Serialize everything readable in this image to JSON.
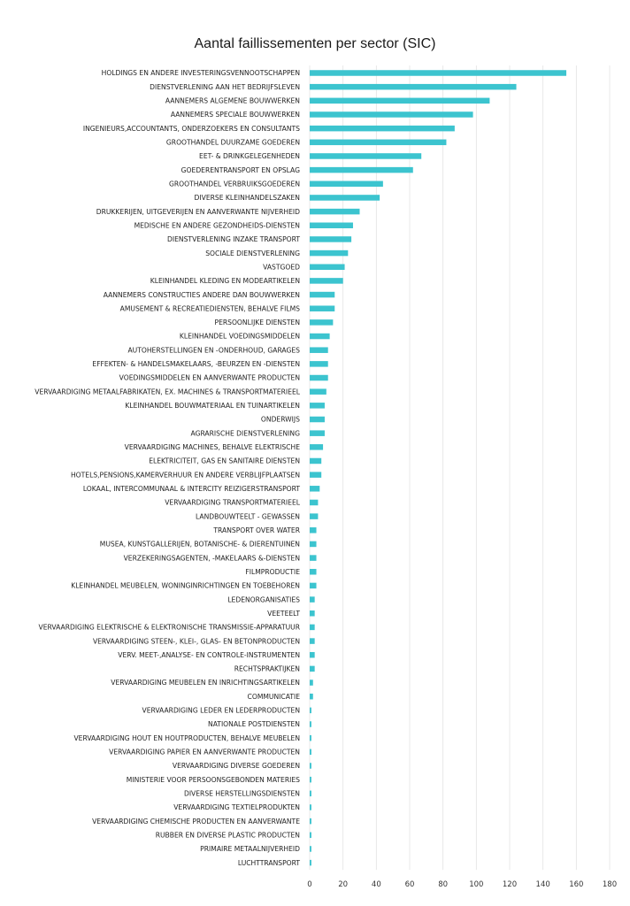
{
  "chart_data": {
    "type": "bar",
    "orientation": "horizontal",
    "title": "Aantal faillissementen per sector (SIC)",
    "xlabel": "",
    "ylabel": "",
    "xlim": [
      0,
      180
    ],
    "xticks": [
      0,
      20,
      40,
      60,
      80,
      100,
      120,
      140,
      160,
      180
    ],
    "grid": "vertical",
    "bar_color": "#3cc4cf",
    "categories": [
      "HOLDINGS EN ANDERE INVESTERINGSVENNOOTSCHAPPEN",
      "DIENSTVERLENING AAN HET BEDRIJFSLEVEN",
      "AANNEMERS ALGEMENE BOUWWERKEN",
      "AANNEMERS SPECIALE BOUWWERKEN",
      "INGENIEURS,ACCOUNTANTS, ONDERZOEKERS EN CONSULTANTS",
      "GROOTHANDEL DUURZAME GOEDEREN",
      "EET- & DRINKGELEGENHEDEN",
      "GOEDERENTRANSPORT EN OPSLAG",
      "GROOTHANDEL VERBRUIKSGOEDEREN",
      "DIVERSE KLEINHANDELSZAKEN",
      "DRUKKERIJEN, UITGEVERIJEN EN AANVERWANTE NIJVERHEID",
      "MEDISCHE EN ANDERE GEZONDHEIDS-DIENSTEN",
      "DIENSTVERLENING INZAKE TRANSPORT",
      "SOCIALE DIENSTVERLENING",
      "VASTGOED",
      "KLEINHANDEL KLEDING EN MODEARTIKELEN",
      "AANNEMERS CONSTRUCTIES ANDERE DAN BOUWWERKEN",
      "AMUSEMENT & RECREATIEDIENSTEN, BEHALVE FILMS",
      "PERSOONLIJKE DIENSTEN",
      "KLEINHANDEL VOEDINGSMIDDELEN",
      "AUTOHERSTELLINGEN EN -ONDERHOUD, GARAGES",
      "EFFEKTEN- & HANDELSMAKELAARS, -BEURZEN EN -DIENSTEN",
      "VOEDINGSMIDDELEN EN AANVERWANTE PRODUCTEN",
      "VERVAARDIGING METAALFABRIKATEN, EX. MACHINES & TRANSPORTMATERIEEL",
      "KLEINHANDEL BOUWMATERIAAL EN TUINARTIKELEN",
      "ONDERWIJS",
      "AGRARISCHE DIENSTVERLENING",
      "VERVAARDIGING MACHINES, BEHALVE ELEKTRISCHE",
      "ELEKTRICITEIT, GAS EN SANITAIRE DIENSTEN",
      "HOTELS,PENSIONS,KAMERVERHUUR EN ANDERE VERBLIJFPLAATSEN",
      "LOKAAL, INTERCOMMUNAAL & INTERCITY REIZIGERSTRANSPORT",
      "VERVAARDIGING TRANSPORTMATERIEEL",
      "LANDBOUWTEELT - GEWASSEN",
      "TRANSPORT OVER WATER",
      "MUSEA, KUNSTGALLERIJEN, BOTANISCHE- & DIERENTUINEN",
      "VERZEKERINGSAGENTEN, -MAKELAARS &-DIENSTEN",
      "FILMPRODUCTIE",
      "KLEINHANDEL MEUBELEN, WONINGINRICHTINGEN EN TOEBEHOREN",
      "LEDENORGANISATIES",
      "VEETEELT",
      "VERVAARDIGING ELEKTRISCHE & ELEKTRONISCHE TRANSMISSIE-APPARATUUR",
      "VERVAARDIGING STEEN-, KLEI-, GLAS- EN BETONPRODUCTEN",
      "VERV. MEET-,ANALYSE- EN CONTROLE-INSTRUMENTEN",
      "RECHTSPRAKTIJKEN",
      "VERVAARDIGING MEUBELEN EN INRICHTINGSARTIKELEN",
      "COMMUNICATIE",
      "VERVAARDIGING LEDER EN LEDERPRODUCTEN",
      "NATIONALE POSTDIENSTEN",
      "VERVAARDIGING HOUT EN HOUTPRODUCTEN, BEHALVE MEUBELEN",
      "VERVAARDIGING PAPIER EN AANVERWANTE PRODUCTEN",
      "VERVAARDIGING DIVERSE GOEDEREN",
      "MINISTERIE VOOR PERSOONSGEBONDEN MATERIES",
      "DIVERSE HERSTELLINGSDIENSTEN",
      "VERVAARDIGING TEXTIELPRODUKTEN",
      "VERVAARDIGING CHEMISCHE PRODUCTEN EN AANVERWANTE",
      "RUBBER EN DIVERSE PLASTIC PRODUCTEN",
      "PRIMAIRE METAALNIJVERHEID",
      "LUCHTTRANSPORT"
    ],
    "values": [
      154,
      124,
      108,
      98,
      87,
      82,
      67,
      62,
      44,
      42,
      30,
      26,
      25,
      23,
      21,
      20,
      15,
      15,
      14,
      12,
      11,
      11,
      11,
      10,
      9,
      9,
      9,
      8,
      7,
      7,
      6,
      5,
      5,
      4,
      4,
      4,
      4,
      4,
      3,
      3,
      3,
      3,
      3,
      3,
      2,
      2,
      1,
      1,
      1,
      1,
      1,
      1,
      1,
      1,
      1,
      1,
      1,
      1
    ]
  }
}
